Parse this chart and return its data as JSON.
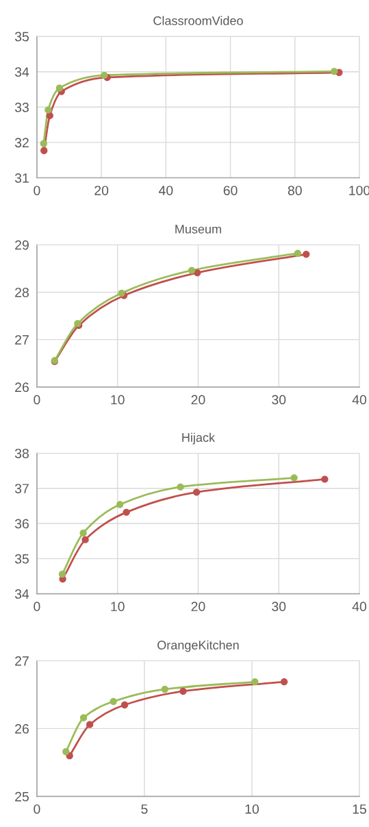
{
  "chart_data": [
    {
      "type": "line",
      "title": "ClassroomVideo",
      "marker": "circle",
      "line_style": "solid",
      "grid": true,
      "xlim": [
        0,
        100
      ],
      "xticks": [
        0,
        20,
        40,
        60,
        80,
        100
      ],
      "ylim": [
        31,
        35
      ],
      "yticks": [
        31,
        32,
        33,
        34,
        35
      ],
      "series": [
        {
          "color": "#9bbb59",
          "x": [
            2.1,
            3.5,
            7.0,
            20.9,
            92.2
          ],
          "values": [
            31.97,
            32.92,
            33.54,
            33.9,
            34.01
          ]
        },
        {
          "color": "#c0504d",
          "x": [
            2.2,
            4.0,
            7.6,
            21.8,
            93.7
          ],
          "values": [
            31.77,
            32.76,
            33.44,
            33.84,
            33.98
          ]
        }
      ]
    },
    {
      "type": "line",
      "title": "Museum",
      "marker": "circle",
      "line_style": "solid",
      "grid": true,
      "xlim": [
        0,
        40
      ],
      "xticks": [
        0,
        10,
        20,
        30,
        40
      ],
      "ylim": [
        26,
        29
      ],
      "yticks": [
        26,
        27,
        28,
        29
      ],
      "series": [
        {
          "color": "#9bbb59",
          "x": [
            2.2,
            5.05,
            10.5,
            19.2,
            32.35
          ],
          "values": [
            26.56,
            27.34,
            27.98,
            28.46,
            28.82
          ]
        },
        {
          "color": "#c0504d",
          "x": [
            2.2,
            5.2,
            10.8,
            19.9,
            33.4
          ],
          "values": [
            26.54,
            27.3,
            27.93,
            28.41,
            28.8
          ]
        }
      ]
    },
    {
      "type": "line",
      "title": "Hijack",
      "marker": "circle",
      "line_style": "solid",
      "grid": true,
      "xlim": [
        0,
        40
      ],
      "xticks": [
        0,
        10,
        20,
        30,
        40
      ],
      "ylim": [
        34,
        38
      ],
      "yticks": [
        34,
        35,
        36,
        37,
        38
      ],
      "series": [
        {
          "color": "#9bbb59",
          "x": [
            3.15,
            5.75,
            10.3,
            17.8,
            31.9
          ],
          "values": [
            34.56,
            35.73,
            36.54,
            37.04,
            37.3
          ]
        },
        {
          "color": "#c0504d",
          "x": [
            3.2,
            6.0,
            11.1,
            19.8,
            35.7
          ],
          "values": [
            34.42,
            35.54,
            36.32,
            36.89,
            37.26
          ]
        }
      ]
    },
    {
      "type": "line",
      "title": "OrangeKitchen",
      "marker": "circle",
      "line_style": "solid",
      "grid": true,
      "xlim": [
        0,
        15
      ],
      "xticks": [
        0,
        5,
        10,
        15
      ],
      "ylim": [
        25,
        27
      ],
      "yticks": [
        25,
        26,
        27
      ],
      "series": [
        {
          "color": "#9bbb59",
          "x": [
            1.35,
            2.17,
            3.56,
            5.95,
            10.14
          ],
          "values": [
            25.66,
            26.16,
            26.4,
            26.58,
            26.69
          ]
        },
        {
          "color": "#c0504d",
          "x": [
            1.52,
            2.46,
            4.08,
            6.8,
            11.5
          ],
          "values": [
            25.6,
            26.06,
            26.35,
            26.55,
            26.69
          ]
        }
      ]
    }
  ]
}
